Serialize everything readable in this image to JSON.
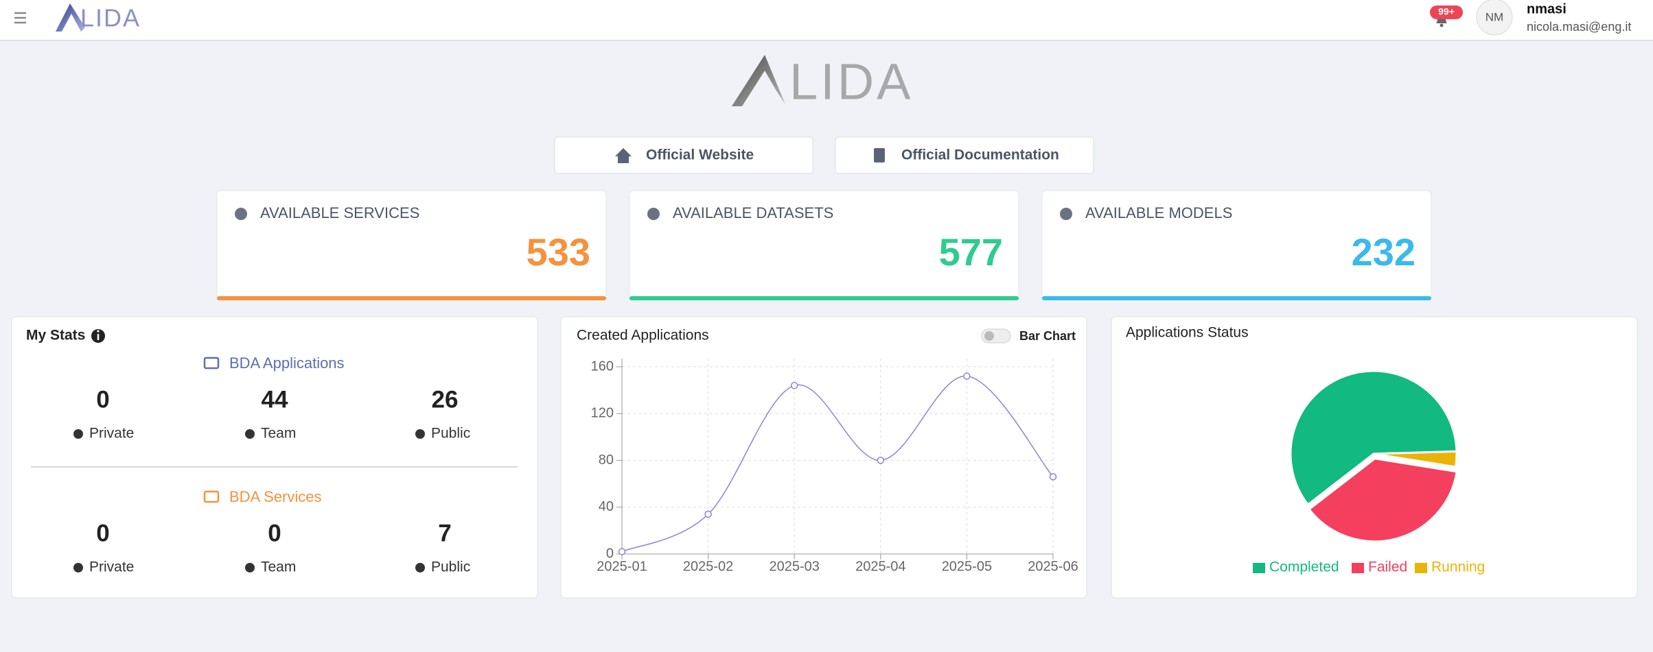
{
  "header": {
    "logo_text": "LIDA",
    "notifications": "99+",
    "user_initials": "NM",
    "username": "nmasi",
    "email": "nicola.masi@eng.it"
  },
  "links": [
    "Official Website",
    "Official Documentation"
  ],
  "summary_cards": [
    {
      "title": "AVAILABLE SERVICES",
      "value": 533,
      "color": "#f5923e"
    },
    {
      "title": "AVAILABLE DATASETS",
      "value": 577,
      "color": "#2ecc8f"
    },
    {
      "title": "AVAILABLE MODELS",
      "value": 232,
      "color": "#3bb9ec"
    }
  ],
  "my_stats": {
    "title": "My Stats",
    "groups": [
      {
        "title": "BDA Applications",
        "color": "#5b6fb1",
        "stats": [
          {
            "label": "Private",
            "value": 0
          },
          {
            "label": "Team",
            "value": 44
          },
          {
            "label": "Public",
            "value": 26
          }
        ]
      },
      {
        "title": "BDA Services",
        "color": "#f5923e",
        "stats": [
          {
            "label": "Private",
            "value": 0
          },
          {
            "label": "Team",
            "value": 0
          },
          {
            "label": "Public",
            "value": 7
          }
        ]
      }
    ]
  },
  "created_applications": {
    "type": "line",
    "title": "Created Applications",
    "toggle_label": "Bar Chart",
    "x": [
      "2025-01",
      "2025-02",
      "2025-03",
      "2025-04",
      "2025-05",
      "2025-06"
    ],
    "values": [
      2,
      34,
      144,
      80,
      152,
      66
    ],
    "color": "#8b84d7",
    "ylim": [
      0,
      160
    ],
    "yticks": [
      0,
      40,
      80,
      120,
      160
    ],
    "grid": true
  },
  "applications_status": {
    "type": "pie",
    "title": "Applications Status",
    "categories": [
      "Completed",
      "Failed",
      "Running"
    ],
    "values": [
      60,
      37,
      3
    ],
    "colors": [
      "#12b981",
      "#f43f5e",
      "#eab308"
    ]
  }
}
